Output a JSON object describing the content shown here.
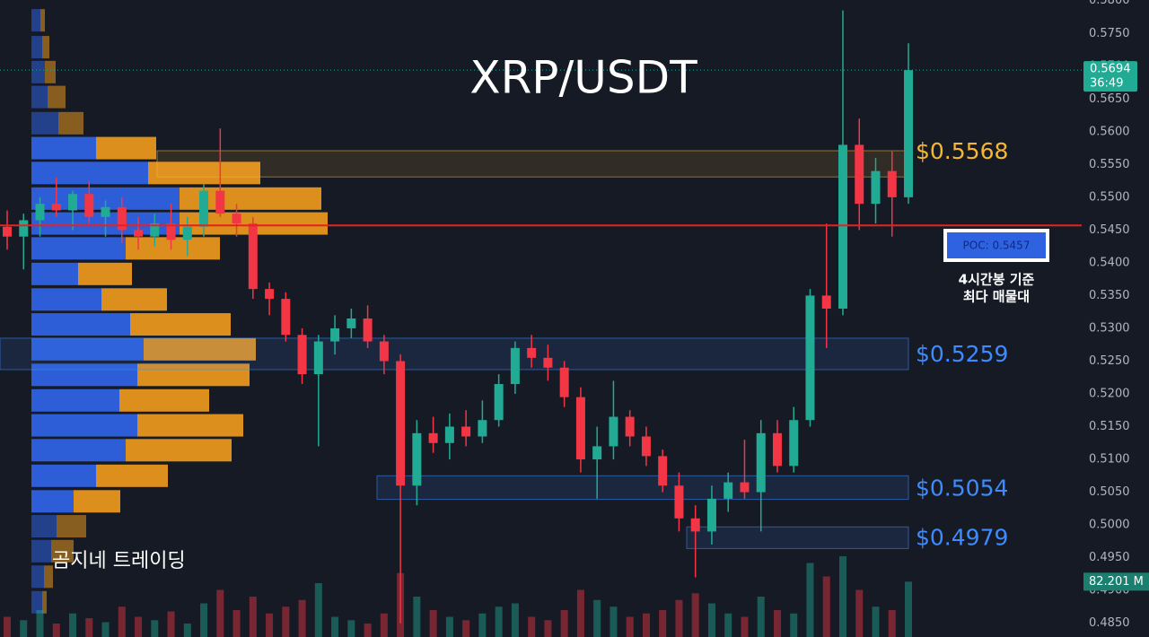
{
  "chart_data": {
    "type": "candlestick",
    "title": "XRP/USDT",
    "watermark": "곰지네 트레이딩",
    "ylim": [
      0.4829,
      0.5801
    ],
    "yticks": [
      {
        "value": 0.58,
        "label": "0.5800"
      },
      {
        "value": 0.575,
        "label": "0.5750"
      },
      {
        "value": 0.57,
        "label": "0.5700"
      },
      {
        "value": 0.565,
        "label": "0.5650"
      },
      {
        "value": 0.56,
        "label": "0.5600"
      },
      {
        "value": 0.555,
        "label": "0.5550"
      },
      {
        "value": 0.55,
        "label": "0.5500"
      },
      {
        "value": 0.545,
        "label": "0.5450"
      },
      {
        "value": 0.54,
        "label": "0.5400"
      },
      {
        "value": 0.535,
        "label": "0.5350"
      },
      {
        "value": 0.53,
        "label": "0.5300"
      },
      {
        "value": 0.525,
        "label": "0.5250"
      },
      {
        "value": 0.52,
        "label": "0.5200"
      },
      {
        "value": 0.515,
        "label": "0.5150"
      },
      {
        "value": 0.51,
        "label": "0.5100"
      },
      {
        "value": 0.505,
        "label": "0.5050"
      },
      {
        "value": 0.5,
        "label": "0.5000"
      },
      {
        "value": 0.495,
        "label": "0.4950"
      },
      {
        "value": 0.49,
        "label": "0.4900"
      },
      {
        "value": 0.485,
        "label": "0.4850"
      }
    ],
    "up_color": "#22ab94",
    "down_color": "#f23645",
    "candles": {
      "open": [
        0.5455,
        0.544,
        0.5465,
        0.549,
        0.548,
        0.5505,
        0.547,
        0.5485,
        0.545,
        0.544,
        0.546,
        0.5435,
        0.5455,
        0.551,
        0.5475,
        0.546,
        0.536,
        0.5345,
        0.529,
        0.523,
        0.528,
        0.53,
        0.5315,
        0.528,
        0.525,
        0.506,
        0.514,
        0.5125,
        0.515,
        0.5135,
        0.516,
        0.5215,
        0.527,
        0.5255,
        0.524,
        0.5195,
        0.51,
        0.512,
        0.5165,
        0.5135,
        0.5105,
        0.506,
        0.501,
        0.499,
        0.504,
        0.5065,
        0.505,
        0.514,
        0.509,
        0.516,
        0.535,
        0.533,
        0.558,
        0.549,
        0.554,
        0.55
      ],
      "high": [
        0.548,
        0.5475,
        0.55,
        0.553,
        0.551,
        0.5525,
        0.5495,
        0.55,
        0.547,
        0.5475,
        0.549,
        0.547,
        0.552,
        0.5605,
        0.549,
        0.547,
        0.537,
        0.5355,
        0.53,
        0.529,
        0.532,
        0.533,
        0.5335,
        0.529,
        0.526,
        0.516,
        0.5165,
        0.517,
        0.5175,
        0.519,
        0.523,
        0.528,
        0.529,
        0.5275,
        0.525,
        0.521,
        0.515,
        0.522,
        0.5175,
        0.515,
        0.5115,
        0.508,
        0.503,
        0.506,
        0.508,
        0.513,
        0.516,
        0.516,
        0.518,
        0.536,
        0.546,
        0.5785,
        0.562,
        0.556,
        0.557,
        0.5735
      ],
      "low": [
        0.542,
        0.539,
        0.544,
        0.547,
        0.545,
        0.546,
        0.544,
        0.543,
        0.542,
        0.5425,
        0.542,
        0.541,
        0.544,
        0.547,
        0.544,
        0.5345,
        0.532,
        0.528,
        0.5215,
        0.512,
        0.526,
        0.5285,
        0.527,
        0.523,
        0.485,
        0.503,
        0.511,
        0.51,
        0.512,
        0.5125,
        0.515,
        0.52,
        0.524,
        0.522,
        0.518,
        0.508,
        0.504,
        0.51,
        0.512,
        0.509,
        0.505,
        0.499,
        0.492,
        0.497,
        0.502,
        0.504,
        0.499,
        0.508,
        0.508,
        0.515,
        0.527,
        0.532,
        0.545,
        0.546,
        0.544,
        0.549
      ],
      "close": [
        0.544,
        0.5465,
        0.549,
        0.548,
        0.5505,
        0.547,
        0.5485,
        0.545,
        0.544,
        0.546,
        0.5435,
        0.5455,
        0.551,
        0.5475,
        0.546,
        0.536,
        0.5345,
        0.529,
        0.523,
        0.528,
        0.53,
        0.5315,
        0.528,
        0.525,
        0.506,
        0.514,
        0.5125,
        0.515,
        0.5135,
        0.516,
        0.5215,
        0.527,
        0.5255,
        0.524,
        0.5195,
        0.51,
        0.512,
        0.5165,
        0.5135,
        0.5105,
        0.506,
        0.501,
        0.499,
        0.504,
        0.5065,
        0.505,
        0.514,
        0.509,
        0.516,
        0.535,
        0.533,
        0.558,
        0.549,
        0.554,
        0.55,
        0.5694
      ]
    },
    "volume": [
      30,
      25,
      40,
      20,
      35,
      28,
      22,
      45,
      30,
      25,
      38,
      20,
      50,
      70,
      40,
      60,
      35,
      45,
      55,
      80,
      30,
      25,
      20,
      35,
      95,
      60,
      40,
      30,
      25,
      35,
      45,
      50,
      30,
      25,
      40,
      70,
      55,
      45,
      30,
      35,
      40,
      55,
      65,
      50,
      35,
      30,
      60,
      40,
      35,
      110,
      90,
      120,
      70,
      45,
      40,
      82.201
    ],
    "volume_tag": {
      "value": 82.201,
      "label": "82.201 M"
    },
    "price_tag": {
      "value": 0.5694,
      "timer": "36:49"
    },
    "volume_profile": {
      "prices": [
        0.577,
        0.5729,
        0.5691,
        0.5653,
        0.5613,
        0.5575,
        0.5537,
        0.5498,
        0.546,
        0.5422,
        0.5383,
        0.5344,
        0.5306,
        0.5268,
        0.5229,
        0.519,
        0.5152,
        0.5114,
        0.5075,
        0.5036,
        0.4998,
        0.496,
        0.4921,
        0.4882
      ],
      "buy": [
        10,
        12,
        15,
        18,
        30,
        72,
        130,
        165,
        165,
        105,
        52,
        78,
        110,
        125,
        118,
        98,
        118,
        105,
        72,
        47,
        28,
        22,
        14,
        12
      ],
      "sell": [
        5,
        8,
        12,
        20,
        28,
        67,
        125,
        158,
        165,
        105,
        60,
        73,
        112,
        125,
        125,
        100,
        118,
        118,
        80,
        52,
        33,
        25,
        10,
        5
      ],
      "buy_color": "#2f62e0",
      "sell_color": "#e8961e"
    },
    "levels": [
      {
        "label": "$0.5568",
        "value": 0.5568,
        "low": 0.5531,
        "high": 0.5571,
        "color": "#f5b731"
      },
      {
        "label": "$0.5259",
        "value": 0.5259,
        "low": 0.5237,
        "high": 0.5285,
        "color": "#3d8bfd"
      },
      {
        "label": "$0.5054",
        "value": 0.5054,
        "low": 0.5039,
        "high": 0.5075,
        "color": "#3d8bfd"
      },
      {
        "label": "$0.4979",
        "value": 0.4979,
        "low": 0.4964,
        "high": 0.4997,
        "color": "#3d8bfd"
      }
    ],
    "poc": {
      "label": "POC: 0.5457",
      "value": 0.5457,
      "color": "#e8211f",
      "notes": [
        "4시간봉 기준",
        "최다 매물대"
      ]
    }
  }
}
